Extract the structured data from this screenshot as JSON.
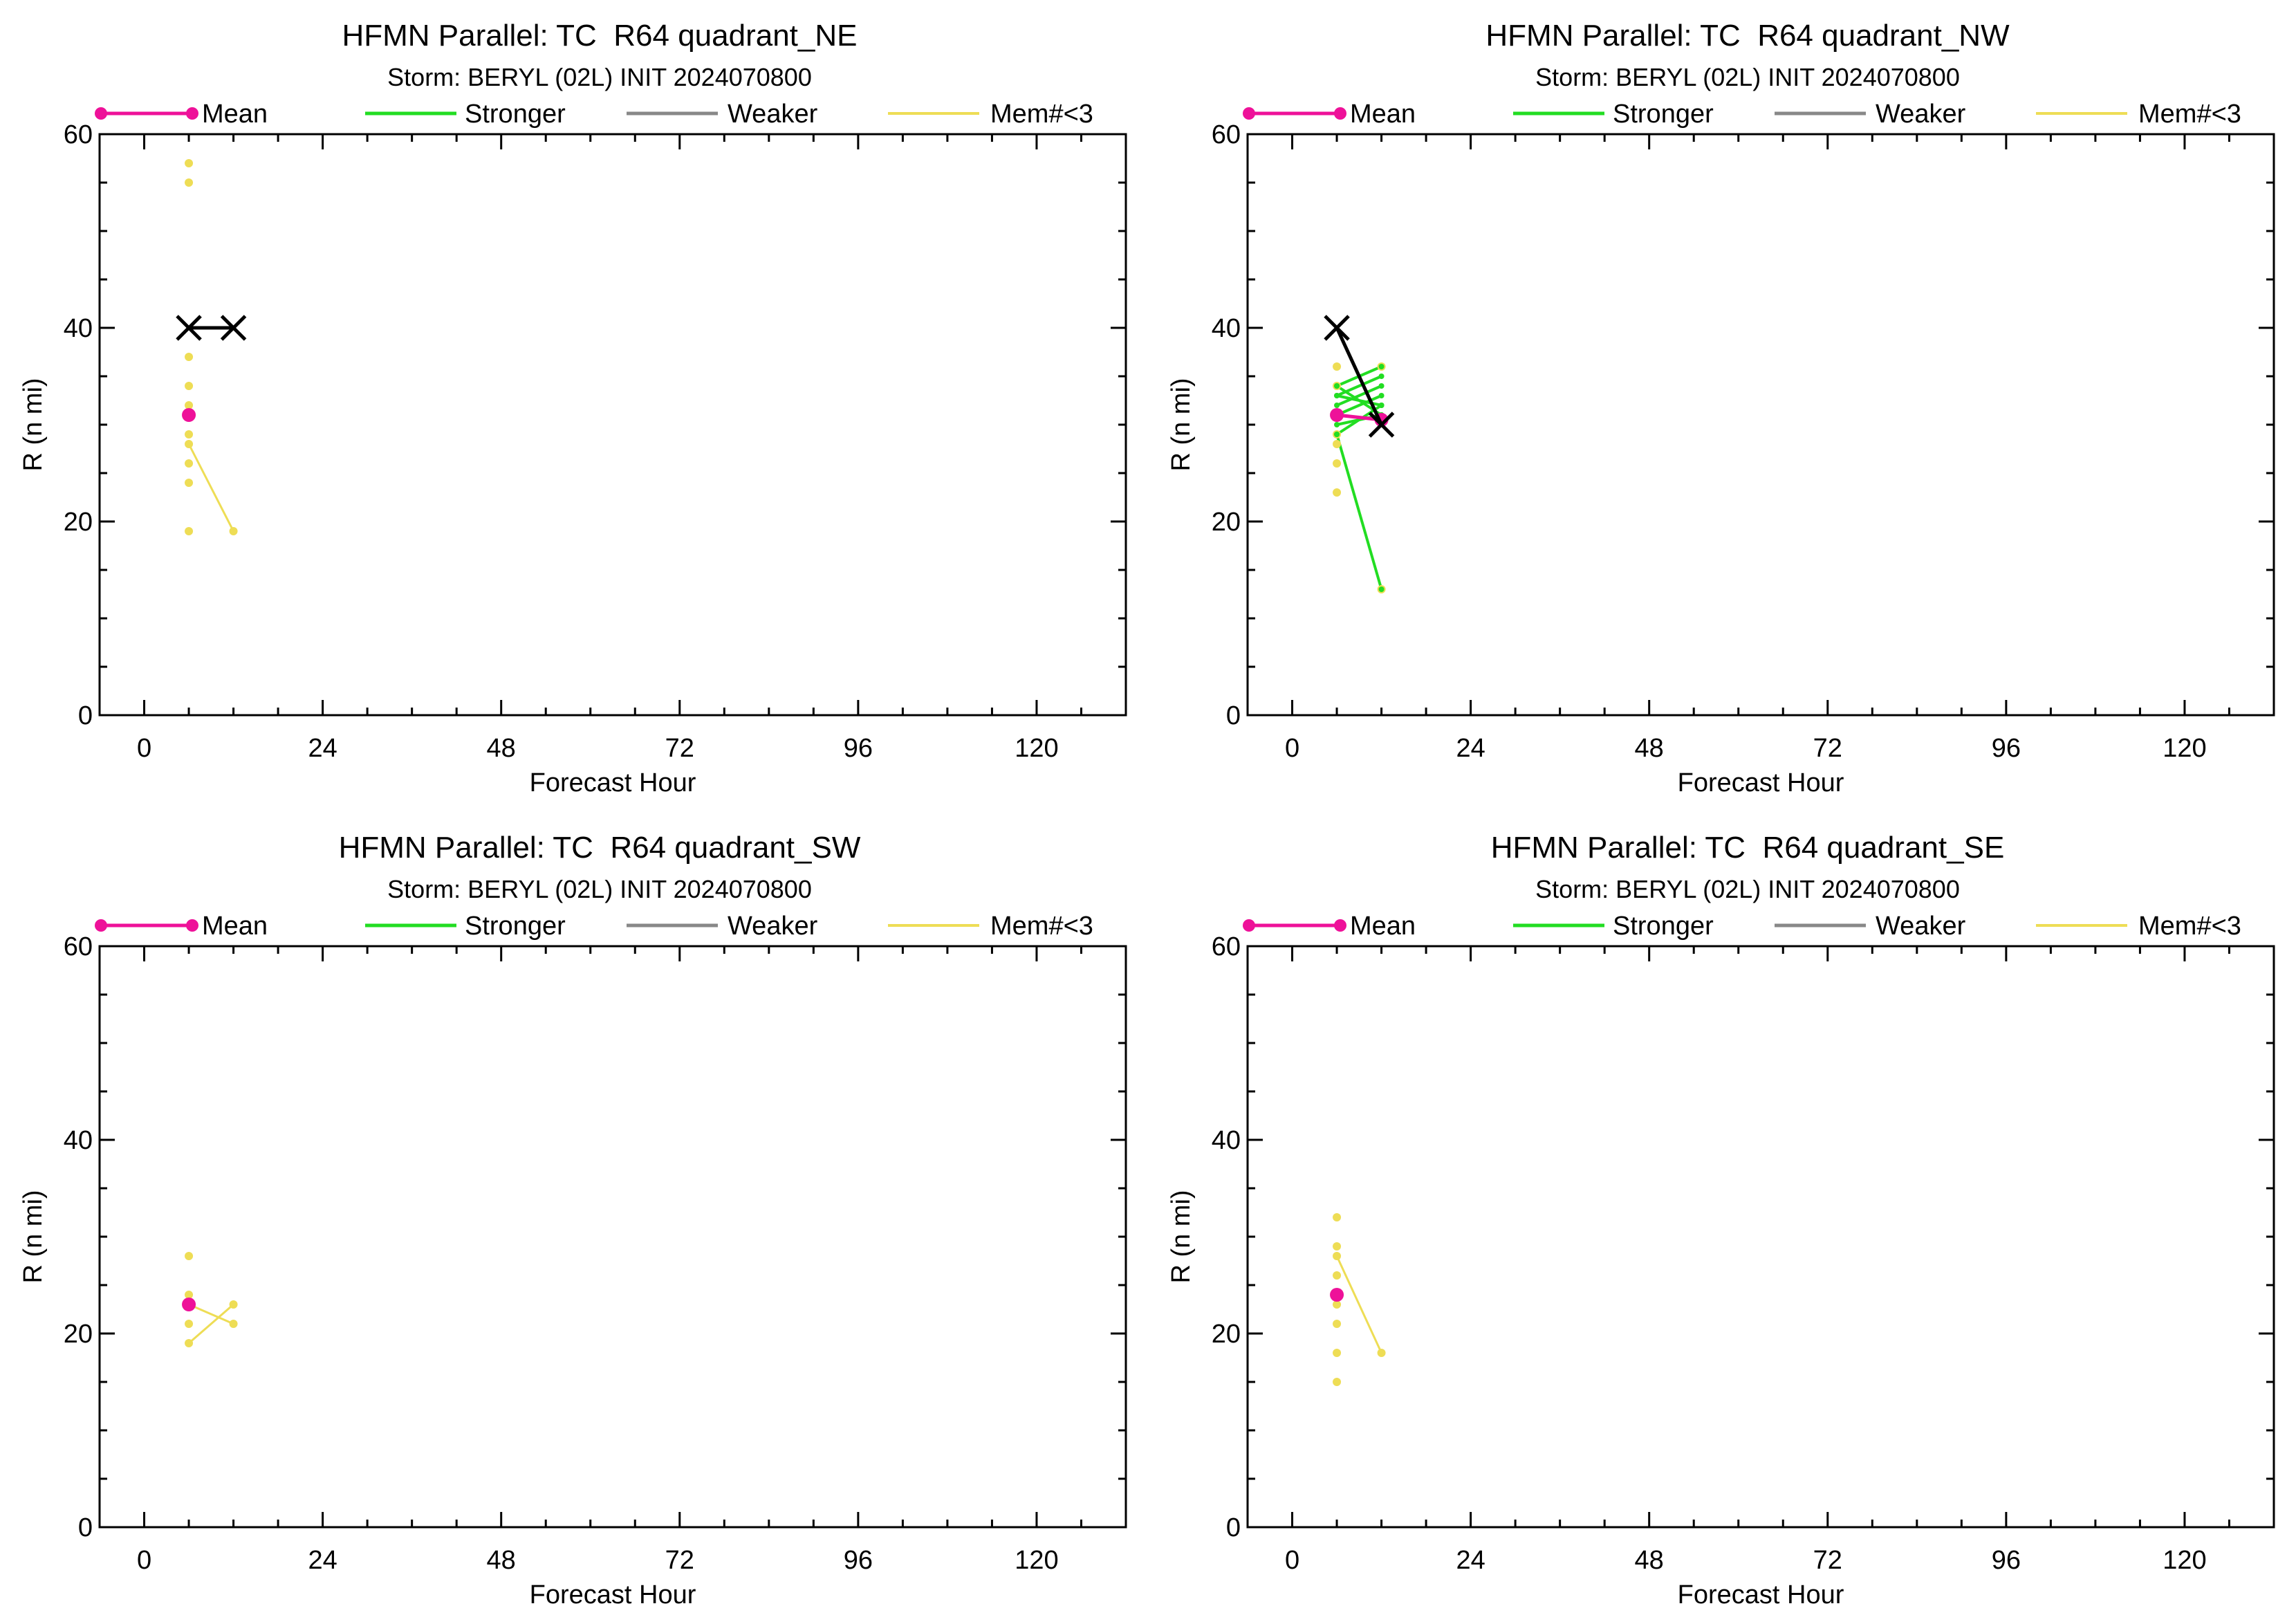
{
  "legend": {
    "mean_label": "Mean",
    "stronger_label": "Stronger",
    "weaker_label": "Weaker",
    "mem_label": "Mem#<3"
  },
  "colors": {
    "mean": "#ee1199",
    "stronger": "#22dd22",
    "weaker": "#888888",
    "mem": "#eedd55",
    "best_track": "#000000"
  },
  "chart_data": [
    {
      "type": "scatter",
      "title": "HFMN Parallel: TC  R64 quadrant_NE",
      "subtitle": "Storm: BERYL (02L) INIT 2024070800",
      "xlabel": "Forecast Hour",
      "ylabel": "R (n mi)",
      "xlim": [
        -6,
        132
      ],
      "ylim": [
        0,
        60
      ],
      "xticks": [
        0,
        24,
        48,
        72,
        96,
        120
      ],
      "yticks": [
        0,
        20,
        40,
        60
      ],
      "legend_position": "top",
      "best_track": [
        {
          "x": 6,
          "y": 40
        },
        {
          "x": 12,
          "y": 40
        }
      ],
      "mean": [
        {
          "x": 6,
          "y": 31
        }
      ],
      "stronger_tracks": [],
      "weaker_tracks": [],
      "mem_points": [
        {
          "x": 6,
          "y": 57
        },
        {
          "x": 6,
          "y": 55
        },
        {
          "x": 6,
          "y": 37
        },
        {
          "x": 6,
          "y": 34
        },
        {
          "x": 6,
          "y": 32
        },
        {
          "x": 6,
          "y": 29
        },
        {
          "x": 6,
          "y": 28
        },
        {
          "x": 6,
          "y": 26
        },
        {
          "x": 6,
          "y": 24
        },
        {
          "x": 6,
          "y": 19
        },
        {
          "x": 12,
          "y": 19
        }
      ],
      "mem_tracks": [
        [
          {
            "x": 6,
            "y": 28
          },
          {
            "x": 12,
            "y": 19
          }
        ]
      ]
    },
    {
      "type": "scatter",
      "title": "HFMN Parallel: TC  R64 quadrant_NW",
      "subtitle": "Storm: BERYL (02L) INIT 2024070800",
      "xlabel": "Forecast Hour",
      "ylabel": "R (n mi)",
      "xlim": [
        -6,
        132
      ],
      "ylim": [
        0,
        60
      ],
      "xticks": [
        0,
        24,
        48,
        72,
        96,
        120
      ],
      "yticks": [
        0,
        20,
        40,
        60
      ],
      "legend_position": "top",
      "best_track": [
        {
          "x": 6,
          "y": 40
        },
        {
          "x": 12,
          "y": 30
        }
      ],
      "mean": [
        {
          "x": 6,
          "y": 31
        },
        {
          "x": 12,
          "y": 30.5
        }
      ],
      "stronger_tracks": [
        [
          {
            "x": 6,
            "y": 34
          },
          {
            "x": 12,
            "y": 36
          }
        ],
        [
          {
            "x": 6,
            "y": 33
          },
          {
            "x": 12,
            "y": 35
          }
        ],
        [
          {
            "x": 6,
            "y": 32
          },
          {
            "x": 12,
            "y": 34
          }
        ],
        [
          {
            "x": 6,
            "y": 31
          },
          {
            "x": 12,
            "y": 33
          }
        ],
        [
          {
            "x": 6,
            "y": 33
          },
          {
            "x": 12,
            "y": 32
          }
        ],
        [
          {
            "x": 6,
            "y": 34
          },
          {
            "x": 12,
            "y": 31
          }
        ],
        [
          {
            "x": 6,
            "y": 29
          },
          {
            "x": 12,
            "y": 32
          }
        ],
        [
          {
            "x": 6,
            "y": 30
          },
          {
            "x": 12,
            "y": 31
          }
        ],
        [
          {
            "x": 6,
            "y": 29
          },
          {
            "x": 12,
            "y": 13
          }
        ]
      ],
      "weaker_tracks": [],
      "mem_points": [
        {
          "x": 6,
          "y": 36
        },
        {
          "x": 6,
          "y": 34
        },
        {
          "x": 6,
          "y": 29
        },
        {
          "x": 6,
          "y": 28
        },
        {
          "x": 6,
          "y": 26
        },
        {
          "x": 6,
          "y": 23
        },
        {
          "x": 12,
          "y": 36
        },
        {
          "x": 12,
          "y": 13
        }
      ],
      "mem_tracks": []
    },
    {
      "type": "scatter",
      "title": "HFMN Parallel: TC  R64 quadrant_SW",
      "subtitle": "Storm: BERYL (02L) INIT 2024070800",
      "xlabel": "Forecast Hour",
      "ylabel": "R (n mi)",
      "xlim": [
        -6,
        132
      ],
      "ylim": [
        0,
        60
      ],
      "xticks": [
        0,
        24,
        48,
        72,
        96,
        120
      ],
      "yticks": [
        0,
        20,
        40,
        60
      ],
      "legend_position": "top",
      "best_track": [],
      "mean": [
        {
          "x": 6,
          "y": 23
        }
      ],
      "stronger_tracks": [],
      "weaker_tracks": [],
      "mem_points": [
        {
          "x": 6,
          "y": 28
        },
        {
          "x": 6,
          "y": 24
        },
        {
          "x": 6,
          "y": 21
        },
        {
          "x": 6,
          "y": 19
        },
        {
          "x": 12,
          "y": 23
        },
        {
          "x": 12,
          "y": 21
        }
      ],
      "mem_tracks": [
        [
          {
            "x": 6,
            "y": 23
          },
          {
            "x": 12,
            "y": 21
          }
        ],
        [
          {
            "x": 6,
            "y": 19
          },
          {
            "x": 12,
            "y": 23
          }
        ]
      ]
    },
    {
      "type": "scatter",
      "title": "HFMN Parallel: TC  R64 quadrant_SE",
      "subtitle": "Storm: BERYL (02L) INIT 2024070800",
      "xlabel": "Forecast Hour",
      "ylabel": "R (n mi)",
      "xlim": [
        -6,
        132
      ],
      "ylim": [
        0,
        60
      ],
      "xticks": [
        0,
        24,
        48,
        72,
        96,
        120
      ],
      "yticks": [
        0,
        20,
        40,
        60
      ],
      "legend_position": "top",
      "best_track": [],
      "mean": [
        {
          "x": 6,
          "y": 24
        }
      ],
      "stronger_tracks": [],
      "weaker_tracks": [],
      "mem_points": [
        {
          "x": 6,
          "y": 32
        },
        {
          "x": 6,
          "y": 29
        },
        {
          "x": 6,
          "y": 28
        },
        {
          "x": 6,
          "y": 26
        },
        {
          "x": 6,
          "y": 23
        },
        {
          "x": 6,
          "y": 21
        },
        {
          "x": 6,
          "y": 18
        },
        {
          "x": 6,
          "y": 15
        },
        {
          "x": 12,
          "y": 18
        }
      ],
      "mem_tracks": [
        [
          {
            "x": 6,
            "y": 28
          },
          {
            "x": 12,
            "y": 18
          }
        ]
      ]
    }
  ]
}
